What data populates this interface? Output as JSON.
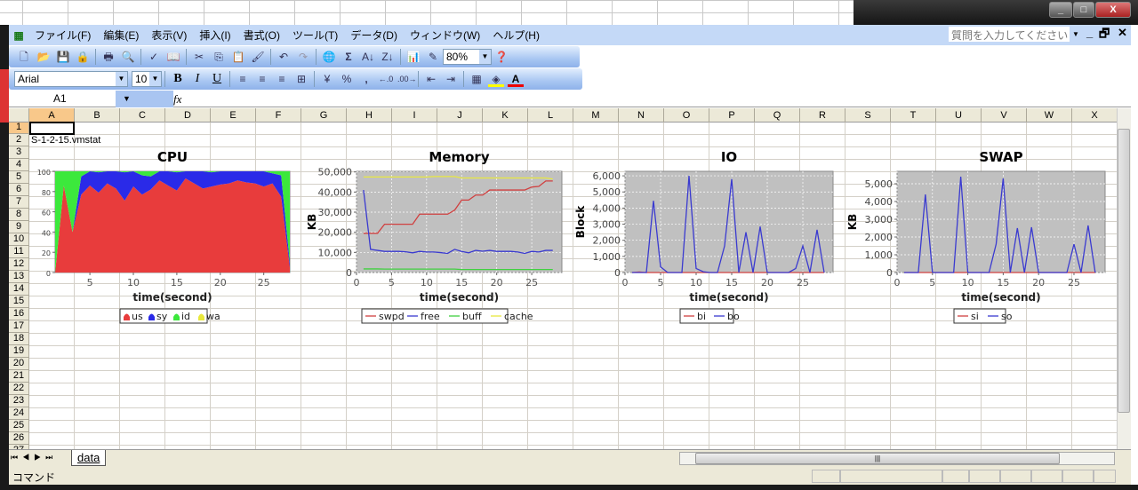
{
  "window": {
    "minimize": "_",
    "maximize": "□",
    "close": "X"
  },
  "menu": [
    "ファイル(F)",
    "編集(E)",
    "表示(V)",
    "挿入(I)",
    "書式(O)",
    "ツール(T)",
    "データ(D)",
    "ウィンドウ(W)",
    "ヘルプ(H)"
  ],
  "help_placeholder": "質問を入力してください",
  "toolbar": {
    "zoom": "80%",
    "font": "Arial",
    "font_size": "10",
    "bold": "B",
    "italic": "I",
    "underline": "U",
    "percent": "%",
    "comma": ","
  },
  "formula": {
    "name_box": "A1",
    "fx": "fx",
    "value": ""
  },
  "columns": [
    "A",
    "B",
    "C",
    "D",
    "E",
    "F",
    "G",
    "H",
    "I",
    "J",
    "K",
    "L",
    "M",
    "N",
    "O",
    "P",
    "Q",
    "R",
    "S",
    "T",
    "U",
    "V",
    "W",
    "X"
  ],
  "rows": [
    "1",
    "2",
    "3",
    "4",
    "5",
    "6",
    "7",
    "8",
    "9",
    "10",
    "11",
    "12",
    "13",
    "14",
    "15",
    "16",
    "17",
    "18",
    "19",
    "20",
    "21",
    "22",
    "23",
    "24",
    "25",
    "26",
    "27"
  ],
  "cells": {
    "A2": "S-1-2-15.vmstat"
  },
  "sheet_tabs": [
    "data"
  ],
  "status": "コマンド",
  "colors": {
    "menu_bg": "#c4d9f7",
    "selected_col": "#f8c88a",
    "plot_bg": "#c0c0c0"
  },
  "chart_data": [
    {
      "type": "stacked-area",
      "title": "CPU",
      "xlabel": "time(second)",
      "ylabel": "",
      "xlim": [
        1,
        28
      ],
      "ylim": [
        0,
        100
      ],
      "xticks": [
        5,
        10,
        15,
        20,
        25
      ],
      "yticks": [
        0,
        20,
        40,
        60,
        80,
        100
      ],
      "grid": false,
      "legend": "bottom",
      "x": [
        1,
        2,
        3,
        4,
        5,
        6,
        7,
        8,
        9,
        10,
        11,
        12,
        13,
        14,
        15,
        16,
        17,
        18,
        19,
        20,
        21,
        22,
        23,
        24,
        25,
        26,
        27,
        28
      ],
      "series": [
        {
          "name": "us",
          "color": "#e83c3c",
          "values": [
            0,
            86,
            40,
            77,
            86,
            79,
            88,
            83,
            71,
            85,
            77,
            82,
            91,
            86,
            81,
            93,
            88,
            83,
            85,
            87,
            88,
            91,
            89,
            88,
            85,
            88,
            75,
            5
          ]
        },
        {
          "name": "sy",
          "color": "#2a2ae8",
          "values": [
            0,
            0,
            0,
            18,
            14,
            20,
            12,
            17,
            28,
            15,
            19,
            13,
            9,
            14,
            18,
            7,
            12,
            17,
            14,
            13,
            12,
            9,
            11,
            12,
            15,
            10,
            21,
            5
          ]
        },
        {
          "name": "id",
          "color": "#3ce83c",
          "values": [
            100,
            14,
            60,
            5,
            0,
            1,
            0,
            0,
            1,
            0,
            4,
            5,
            0,
            0,
            1,
            0,
            0,
            0,
            1,
            0,
            0,
            0,
            0,
            0,
            0,
            2,
            4,
            90
          ]
        },
        {
          "name": "wa",
          "color": "#e8e83c",
          "values": [
            0,
            0,
            0,
            0,
            0,
            0,
            0,
            0,
            0,
            0,
            0,
            0,
            0,
            0,
            0,
            0,
            0,
            0,
            0,
            0,
            0,
            0,
            0,
            0,
            0,
            0,
            0,
            0
          ]
        }
      ]
    },
    {
      "type": "line",
      "title": "Memory",
      "xlabel": "time(second)",
      "ylabel": "KB",
      "xlim": [
        0,
        29.3
      ],
      "ylim": [
        0,
        50300
      ],
      "xticks": [
        0,
        5,
        10,
        15,
        20,
        25
      ],
      "yticks": [
        0,
        10000,
        20000,
        30000,
        40000,
        50000
      ],
      "grid": true,
      "legend": "bottom",
      "x": [
        1,
        2,
        3,
        4,
        5,
        6,
        7,
        8,
        9,
        10,
        11,
        12,
        13,
        14,
        15,
        16,
        17,
        18,
        19,
        20,
        21,
        22,
        23,
        24,
        25,
        26,
        27,
        28
      ],
      "series": [
        {
          "name": "swpd",
          "color": "#d04040",
          "values": [
            19500,
            19500,
            19500,
            24000,
            24000,
            24000,
            24000,
            24000,
            29000,
            29000,
            29000,
            29000,
            29000,
            31000,
            36000,
            36000,
            38500,
            38500,
            41000,
            41000,
            41000,
            41000,
            41000,
            41000,
            42500,
            42800,
            45500,
            45500
          ]
        },
        {
          "name": "free",
          "color": "#3a3ad0",
          "values": [
            41000,
            11500,
            11000,
            10500,
            10500,
            10500,
            10300,
            9800,
            10500,
            10200,
            10200,
            9900,
            9500,
            11500,
            10500,
            9800,
            11000,
            10600,
            11000,
            10500,
            10500,
            10500,
            10200,
            9500,
            10500,
            10200,
            11000,
            11000
          ]
        },
        {
          "name": "buff",
          "color": "#40d040",
          "values": [
            1800,
            1800,
            1800,
            1700,
            1700,
            1700,
            1700,
            1700,
            1700,
            1700,
            1700,
            1700,
            1700,
            1700,
            1500,
            1500,
            1500,
            1500,
            1500,
            1500,
            1500,
            1500,
            1500,
            1500,
            1500,
            1500,
            1500,
            1500
          ]
        },
        {
          "name": "cache",
          "color": "#e8e840",
          "values": [
            47500,
            47500,
            47500,
            47500,
            47500,
            47500,
            47500,
            47500,
            47500,
            47500,
            47700,
            47700,
            47700,
            47700,
            47000,
            47000,
            47000,
            47000,
            47000,
            47000,
            47000,
            47000,
            47000,
            47000,
            47000,
            47000,
            47000,
            46500
          ]
        }
      ]
    },
    {
      "type": "line",
      "title": "IO",
      "xlabel": "time(second)",
      "ylabel": "Block",
      "xlim": [
        0,
        29.25
      ],
      "ylim": [
        0,
        6280
      ],
      "xticks": [
        0,
        5,
        10,
        15,
        20,
        25
      ],
      "yticks": [
        0,
        1000,
        2000,
        3000,
        4000,
        5000,
        6000
      ],
      "grid": true,
      "legend": "bottom",
      "x": [
        1,
        2,
        3,
        4,
        5,
        6,
        7,
        8,
        9,
        10,
        11,
        12,
        13,
        14,
        15,
        16,
        17,
        18,
        19,
        20,
        21,
        22,
        23,
        24,
        25,
        26,
        27,
        28
      ],
      "series": [
        {
          "name": "bi",
          "color": "#d04040",
          "values": [
            0,
            30,
            0,
            0,
            0,
            0,
            0,
            0,
            0,
            0,
            0,
            0,
            0,
            0,
            0,
            0,
            0,
            0,
            0,
            0,
            0,
            0,
            0,
            0,
            0,
            0,
            0,
            0
          ]
        },
        {
          "name": "bo",
          "color": "#3a3ad0",
          "values": [
            0,
            0,
            0,
            4450,
            350,
            0,
            0,
            0,
            6000,
            250,
            50,
            0,
            0,
            1650,
            5800,
            0,
            2500,
            0,
            2850,
            0,
            0,
            0,
            0,
            250,
            1650,
            0,
            2650,
            0
          ]
        }
      ]
    },
    {
      "type": "line",
      "title": "SWAP",
      "xlabel": "time(second)",
      "ylabel": "KB",
      "xlim": [
        0,
        29.4
      ],
      "ylim": [
        0,
        5700
      ],
      "xticks": [
        0,
        5,
        10,
        15,
        20,
        25
      ],
      "yticks": [
        0,
        1000,
        2000,
        3000,
        4000,
        5000
      ],
      "grid": true,
      "legend": "bottom",
      "x": [
        1,
        2,
        3,
        4,
        5,
        6,
        7,
        8,
        9,
        10,
        11,
        12,
        13,
        14,
        15,
        16,
        17,
        18,
        19,
        20,
        21,
        22,
        23,
        24,
        25,
        26,
        27,
        28
      ],
      "series": [
        {
          "name": "si",
          "color": "#d04040",
          "values": [
            0,
            0,
            0,
            0,
            0,
            0,
            0,
            0,
            0,
            0,
            0,
            0,
            0,
            0,
            0,
            0,
            0,
            0,
            0,
            0,
            0,
            0,
            0,
            0,
            0,
            0,
            0,
            0
          ]
        },
        {
          "name": "so",
          "color": "#3a3ad0",
          "values": [
            0,
            0,
            0,
            4400,
            0,
            0,
            0,
            0,
            5400,
            0,
            0,
            0,
            0,
            1600,
            5300,
            0,
            2500,
            0,
            2550,
            0,
            0,
            0,
            0,
            0,
            1600,
            0,
            2650,
            0
          ]
        }
      ]
    }
  ]
}
